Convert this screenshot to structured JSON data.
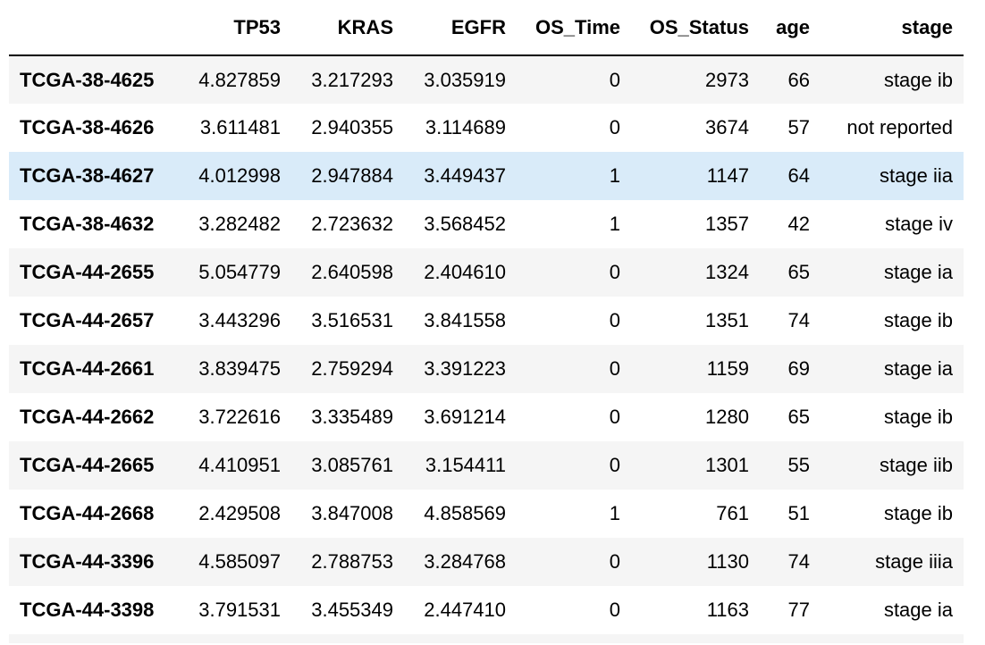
{
  "columns": [
    "",
    "TP53",
    "KRAS",
    "EGFR",
    "OS_Time",
    "OS_Status",
    "age",
    "stage"
  ],
  "highlight_color": "#d9ebf9",
  "rows": [
    {
      "id": "TCGA-38-4625",
      "cells": [
        "4.827859",
        "3.217293",
        "3.035919",
        "0",
        "2973",
        "66",
        "stage ib"
      ]
    },
    {
      "id": "TCGA-38-4626",
      "cells": [
        "3.611481",
        "2.940355",
        "3.114689",
        "0",
        "3674",
        "57",
        "not reported"
      ]
    },
    {
      "id": "TCGA-38-4627",
      "cells": [
        "4.012998",
        "2.947884",
        "3.449437",
        "1",
        "1147",
        "64",
        "stage iia"
      ],
      "highlighted": true
    },
    {
      "id": "TCGA-38-4632",
      "cells": [
        "3.282482",
        "2.723632",
        "3.568452",
        "1",
        "1357",
        "42",
        "stage iv"
      ]
    },
    {
      "id": "TCGA-44-2655",
      "cells": [
        "5.054779",
        "2.640598",
        "2.404610",
        "0",
        "1324",
        "65",
        "stage ia"
      ]
    },
    {
      "id": "TCGA-44-2657",
      "cells": [
        "3.443296",
        "3.516531",
        "3.841558",
        "0",
        "1351",
        "74",
        "stage ib"
      ]
    },
    {
      "id": "TCGA-44-2661",
      "cells": [
        "3.839475",
        "2.759294",
        "3.391223",
        "0",
        "1159",
        "69",
        "stage ia"
      ]
    },
    {
      "id": "TCGA-44-2662",
      "cells": [
        "3.722616",
        "3.335489",
        "3.691214",
        "0",
        "1280",
        "65",
        "stage ib"
      ]
    },
    {
      "id": "TCGA-44-2665",
      "cells": [
        "4.410951",
        "3.085761",
        "3.154411",
        "0",
        "1301",
        "55",
        "stage iib"
      ]
    },
    {
      "id": "TCGA-44-2668",
      "cells": [
        "2.429508",
        "3.847008",
        "4.858569",
        "1",
        "761",
        "51",
        "stage ib"
      ]
    },
    {
      "id": "TCGA-44-3396",
      "cells": [
        "4.585097",
        "2.788753",
        "3.284768",
        "0",
        "1130",
        "74",
        "stage iiia"
      ]
    },
    {
      "id": "TCGA-44-3398",
      "cells": [
        "3.791531",
        "3.455349",
        "2.447410",
        "0",
        "1163",
        "77",
        "stage ia"
      ]
    }
  ]
}
